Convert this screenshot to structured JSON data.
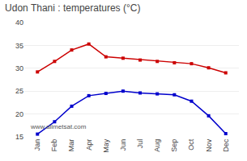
{
  "chart_data": {
    "type": "line",
    "title": "Udon Thani : temperatures (°C)",
    "categories": [
      "Jan",
      "Feb",
      "Mar",
      "Apr",
      "May",
      "Jun",
      "Jul",
      "Aug",
      "Sep",
      "Oct",
      "Nov",
      "Dec"
    ],
    "series": [
      {
        "color": "#cc0000",
        "values": [
          29.2,
          31.5,
          34.0,
          35.3,
          32.5,
          32.2,
          31.8,
          31.5,
          31.2,
          31.0,
          30.1,
          29.0
        ]
      },
      {
        "color": "#0000cc",
        "values": [
          15.6,
          18.3,
          21.7,
          24.0,
          24.5,
          25.0,
          24.6,
          24.4,
          24.2,
          22.8,
          19.6,
          15.7
        ]
      }
    ],
    "ylim": [
      15,
      40
    ],
    "yticks": [
      15,
      20,
      25,
      30,
      35,
      40
    ],
    "grid": true,
    "marker": "square",
    "annotations": [
      "www.allmetsat.com"
    ]
  }
}
